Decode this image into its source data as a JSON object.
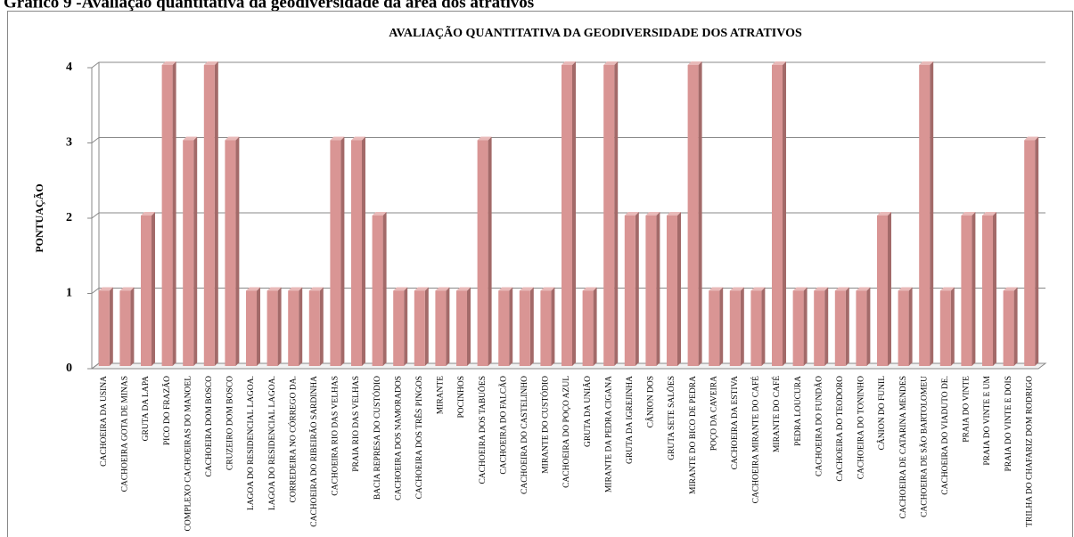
{
  "heading": "Gráfico 9 -Avaliação quantitativa da geodiversidade da área dos atrativos",
  "chart_data": {
    "type": "bar",
    "title": "AVALIAÇÃO QUANTITATIVA DA GEODIVERSIDADE DOS ATRATIVOS",
    "y_label": "PONTUAÇÃO",
    "categories": [
      "CACHOEIRA DA USINA",
      "CACHOEIRA GOTA DE MINAS",
      "GRUTA DA LAPA",
      "PICO DO FRAZÃO",
      "COMPLEXO CACHOEIRAS DO MANOEL",
      "CACHOEIRA DOM BOSCO",
      "CRUZEIRO DOM BOSCO",
      "LAGOA DO RESIDENCIAL LAGOA.",
      "LAGOA DO RESIDENCIAL LAGOA.",
      "CORREDEIRA NO CÓRREGO DA.",
      "CACHOEIRA DO RIBEIRÃO SARDINHA",
      "CACHOEIRA RIO DAS VELHAS",
      "PRAIA RIO DAS VELHAS",
      "BACIA REPRESA DO CUSTÓDIO",
      "CACHOEIRA DOS NAMORADOS",
      "CACHOEIRA DOS TRÊS PINGOS",
      "MIRANTE",
      "POCINHOS",
      "CACHOEIRA DOS TABUÕES",
      "CACHOEIRA DO FALCÃO",
      "CACHOEIRA DO CASTELINHO",
      "MIRANTE DO CUSTÓDIO",
      "CACHOEIRA DO POÇO AZUL",
      "GRUTA DA UNIÃO",
      "MIRANTE DA PEDRA CIGANA",
      "GRUTA DA IGREJINHA",
      "CÂNION DOS",
      "GRUTA SETE SALÕES",
      "MIRANTE DO BICO DE PEDRA",
      "POÇO DA CAVEIRA",
      "CACHOEIRA DA ESTIVA",
      "CACHOEIRA MIRANTE DO CAFÉ",
      "MIRANTE DO CAFÉ",
      "PEDRA LOUCURA",
      "CACHOEIRA DO FUNDÃO",
      "CACHOEIRA DO TEODORO",
      "CACHOEIRA DO TONINHO",
      "CÂNION DO FUNIL",
      "CACHOEIRA DE CATARINA MENDES",
      "CACHOEIRA DE SÃO BARTOLOMEU",
      "CACHOEIRA DO VIADUTO DE.",
      "PRAIA DO VINTE",
      "PRAIA DO VINTE E UM",
      "PRAIA DO VINTE E DOIS",
      "TRILHA DO CHAFARIZ DOM RODRIGO"
    ],
    "values": [
      1,
      1,
      2,
      4,
      3,
      4,
      3,
      1,
      1,
      1,
      1,
      3,
      3,
      2,
      1,
      1,
      1,
      1,
      3,
      1,
      1,
      1,
      4,
      1,
      4,
      2,
      2,
      2,
      4,
      1,
      1,
      1,
      4,
      1,
      1,
      1,
      1,
      2,
      1,
      4,
      1,
      2,
      2,
      1,
      3
    ],
    "color": "#d99594",
    "ylim": [
      0,
      4
    ],
    "yticks": [
      0,
      1,
      2,
      3,
      4
    ],
    "grid": true
  }
}
